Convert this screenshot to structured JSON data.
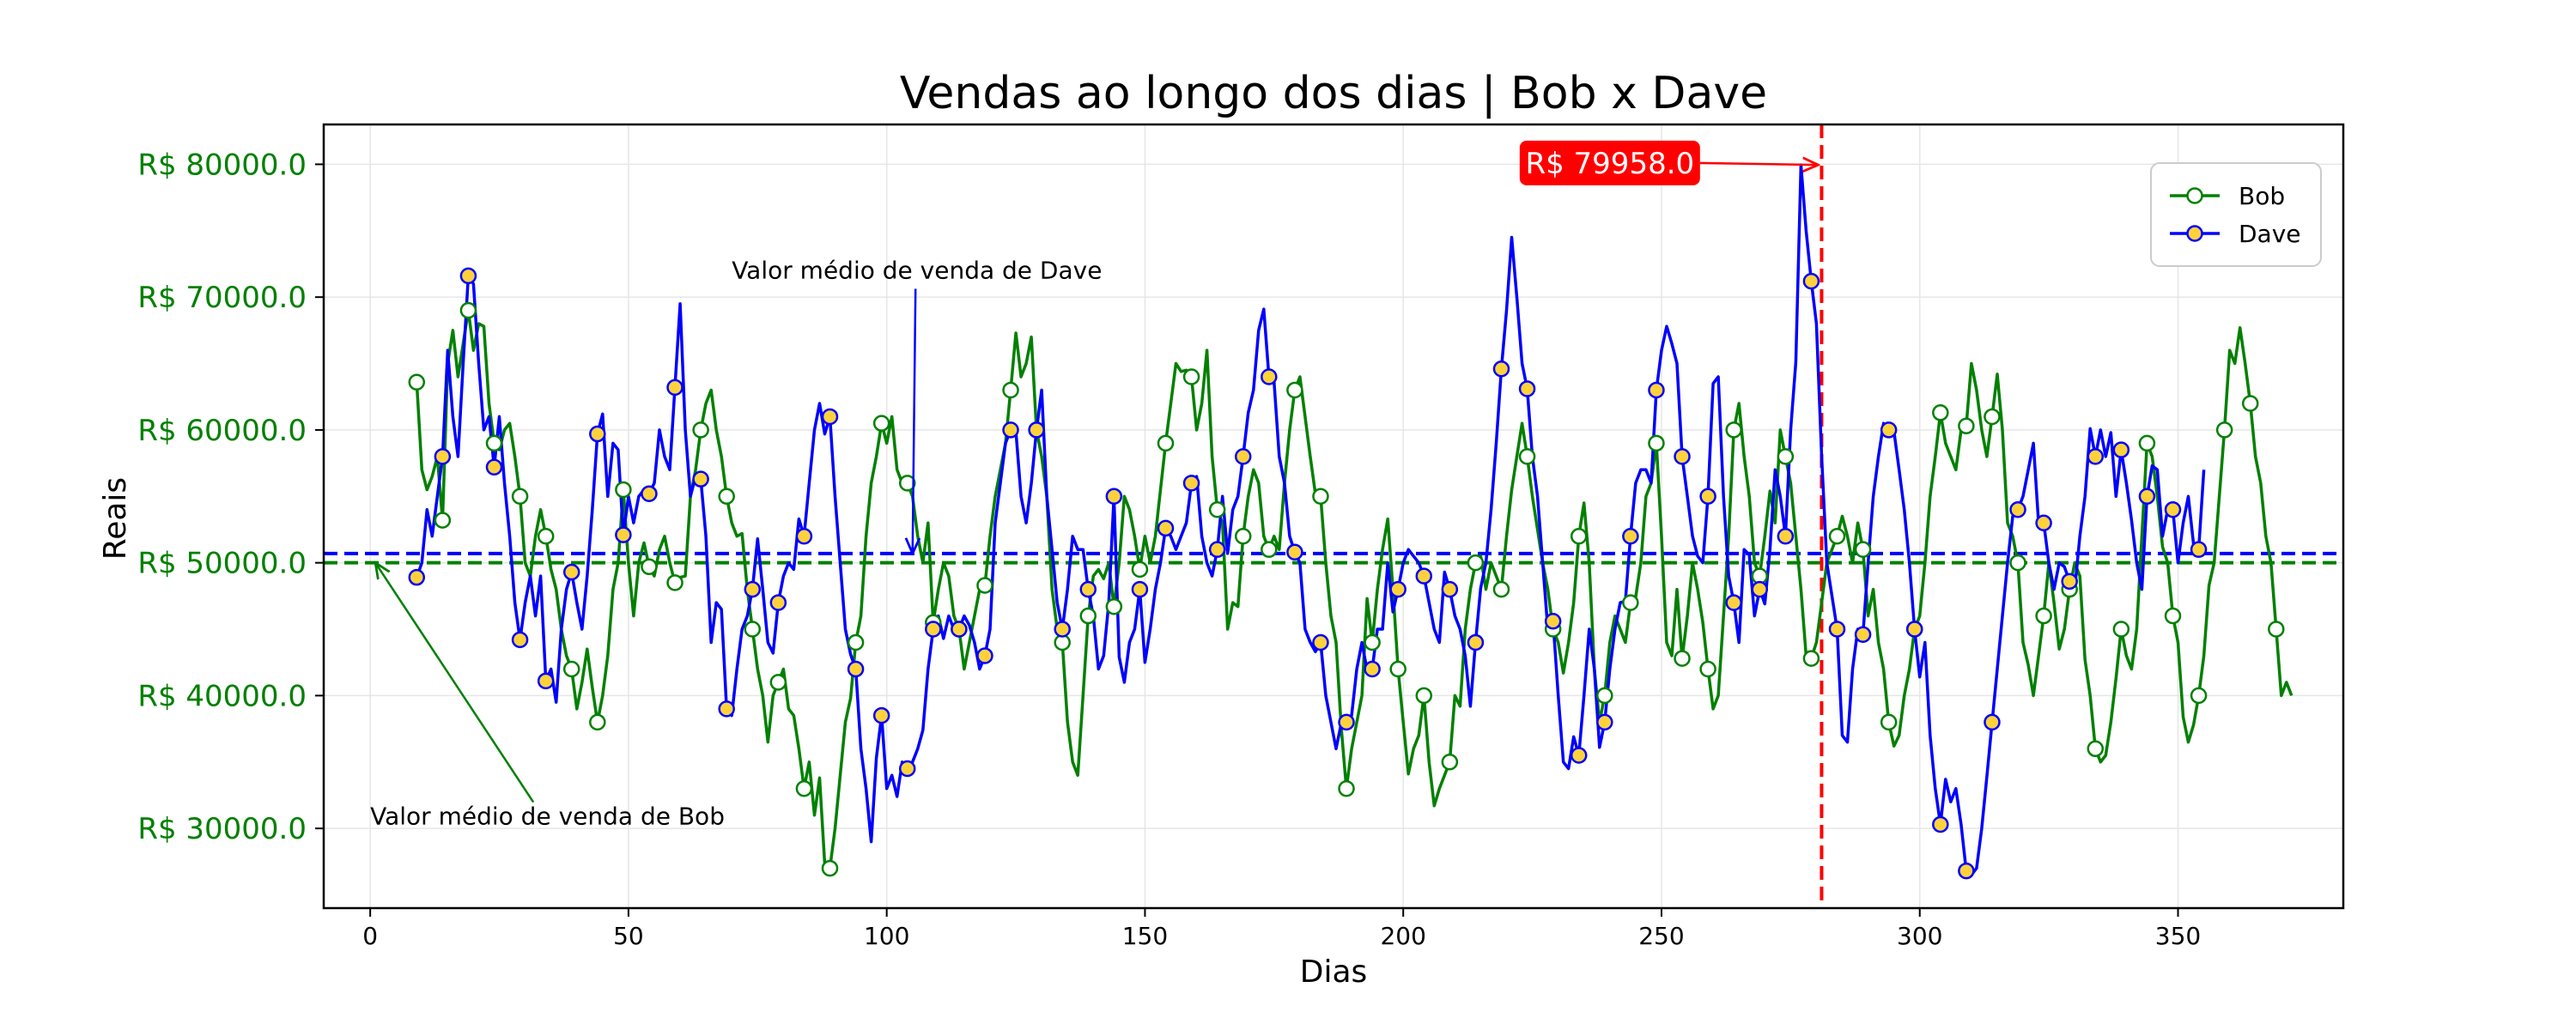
{
  "chart_data": {
    "type": "line",
    "title": "Vendas ao longo dos dias | Bob x Dave",
    "xlabel": "Dias",
    "ylabel": "Reais",
    "xlim": [
      -9,
      382
    ],
    "ylim": [
      24000,
      83000
    ],
    "x_ticks": [
      0,
      50,
      100,
      150,
      200,
      250,
      300,
      350
    ],
    "y_ticks": [
      30000,
      40000,
      50000,
      60000,
      70000,
      80000
    ],
    "y_tick_labels": [
      "R$ 30000.0",
      "R$ 40000.0",
      "R$ 50000.0",
      "R$ 60000.0",
      "R$ 70000.0",
      "R$ 80000.0"
    ],
    "grid": true,
    "legend_position": "top-right",
    "series": [
      {
        "name": "Bob",
        "color": "#008000",
        "marker": "open-circle",
        "marker_every": 5,
        "x_start": 9,
        "values": [
          63600,
          57000,
          55500,
          56500,
          58000,
          53200,
          65000,
          67500,
          64000,
          66500,
          69000,
          66000,
          68000,
          67800,
          62000,
          59000,
          58500,
          60000,
          60500,
          58000,
          55000,
          50000,
          49000,
          52000,
          54000,
          52000,
          49500,
          48000,
          45000,
          43000,
          42000,
          39000,
          41000,
          43500,
          40600,
          38000,
          40000,
          43000,
          48000,
          50000,
          55500,
          50000,
          46000,
          50000,
          51500,
          49700,
          49000,
          51000,
          52000,
          50000,
          48500,
          48900,
          49000,
          55000,
          57000,
          60000,
          62000,
          63000,
          60000,
          58000,
          55000,
          53000,
          52000,
          52200,
          48000,
          45000,
          42000,
          40000,
          36500,
          40000,
          41000,
          42000,
          39000,
          38500,
          36000,
          33000,
          35000,
          31000,
          33800,
          27300,
          27000,
          30000,
          34000,
          38000,
          39800,
          44000,
          46000,
          52000,
          56000,
          58000,
          60500,
          59000,
          61000,
          57000,
          56000,
          56000,
          55000,
          52000,
          50000,
          53000,
          45500,
          48000,
          50000,
          49000,
          46000,
          45000,
          42000,
          44000,
          46000,
          48000,
          48300,
          52000,
          55000,
          57000,
          59000,
          63000,
          67300,
          64000,
          65000,
          67000,
          60000,
          58000,
          55000,
          48000,
          45000,
          44000,
          38000,
          35000,
          34000,
          40000,
          46000,
          49000,
          49500,
          48800,
          50000,
          46700,
          50000,
          55000,
          54000,
          52000,
          49500,
          52000,
          50000,
          52000,
          55500,
          59000,
          62000,
          65000,
          64400,
          64500,
          64000,
          60000,
          62000,
          66000,
          58000,
          54000,
          53000,
          45000,
          47000,
          46700,
          52000,
          55000,
          57000,
          56000,
          52000,
          51000,
          52000,
          51000,
          56000,
          60000,
          63000,
          64000,
          61000,
          58000,
          55200,
          55000,
          50000,
          46000,
          44000,
          37600,
          33000,
          36000,
          38000,
          40000,
          47300,
          44000,
          48000,
          51000,
          53300,
          48000,
          42000,
          38000,
          34100,
          36000,
          37000,
          40000,
          35000,
          31700,
          33000,
          34000,
          35000,
          40000,
          39200,
          45000,
          48000,
          50000,
          50500,
          48000,
          50000,
          49000,
          48000,
          52000,
          55500,
          58000,
          60500,
          58000,
          55000,
          52500,
          50000,
          48000,
          45000,
          44000,
          41700,
          44000,
          47000,
          52000,
          54500,
          50000,
          42000,
          38000,
          40000,
          44000,
          46000,
          45000,
          44000,
          47000,
          47400,
          50000,
          55000,
          56000,
          59000,
          52000,
          44000,
          43000,
          48000,
          42800,
          46000,
          50000,
          48000,
          45500,
          42000,
          39000,
          40000,
          46000,
          52000,
          60000,
          62000,
          58000,
          55000,
          50000,
          49000,
          52000,
          55400,
          53000,
          60000,
          58000,
          56000,
          52000,
          48000,
          43000,
          42800,
          44000,
          47000,
          50000,
          51000,
          52000,
          53500,
          52000,
          50000,
          53000,
          51000,
          46000,
          48000,
          44000,
          42000,
          38000,
          36200,
          37000,
          40000,
          42000,
          45000,
          46000,
          50000,
          55000,
          58000,
          61300,
          59000,
          58000,
          57000,
          60000,
          60300,
          65000,
          63000,
          60000,
          58000,
          61000,
          64200,
          60000,
          53000,
          52000,
          50000,
          44000,
          42300,
          40000,
          43000,
          46000,
          50000,
          47000,
          43500,
          45000,
          48000,
          50000,
          49000,
          42700,
          40000,
          36000,
          35000,
          35500,
          38000,
          41300,
          45000,
          43000,
          42000,
          45000,
          52000,
          59000,
          58000,
          55000,
          51200,
          50000,
          46000,
          44000,
          38400,
          36500,
          37800,
          40000,
          43000,
          48300,
          50000,
          55000,
          60000,
          66000,
          65000,
          67700,
          65000,
          62000,
          58000,
          56000,
          52000,
          50000,
          45000,
          40000,
          41000,
          40000
        ]
      },
      {
        "name": "Dave",
        "color": "#0000ff",
        "marker": "filled-circle",
        "marker_color": "#ffd23c",
        "marker_every": 5,
        "x_start": 9,
        "values": [
          48900,
          50000,
          54000,
          52000,
          55000,
          58000,
          66000,
          61000,
          58000,
          65000,
          71600,
          71000,
          65000,
          60000,
          61000,
          57200,
          61000,
          56000,
          52000,
          47000,
          44200,
          47000,
          49000,
          46000,
          49000,
          41100,
          42000,
          39500,
          45000,
          48000,
          49300,
          47000,
          45000,
          49000,
          54000,
          59700,
          61200,
          55000,
          59000,
          58500,
          52100,
          55000,
          53000,
          55000,
          55500,
          55200,
          56000,
          60000,
          58000,
          57000,
          63200,
          69500,
          60000,
          55000,
          56500,
          56300,
          52000,
          44000,
          47000,
          46500,
          39000,
          38500,
          42000,
          45000,
          46000,
          48000,
          51800,
          48000,
          44000,
          43200,
          47000,
          49000,
          50000,
          49500,
          53300,
          52000,
          56000,
          60000,
          62000,
          59700,
          61000,
          55000,
          50000,
          45000,
          43100,
          42000,
          36000,
          33000,
          29000,
          35300,
          38500,
          33000,
          34000,
          32400,
          35000,
          34500,
          35000,
          36000,
          37400,
          42000,
          45000,
          46000,
          44300,
          46000,
          45000,
          45000,
          46000,
          45300,
          44000,
          42000,
          43000,
          45000,
          53000,
          56000,
          59000,
          60000,
          59900,
          55000,
          53000,
          56000,
          60000,
          63000,
          55000,
          51000,
          47000,
          45000,
          48000,
          52000,
          51000,
          51000,
          48000,
          46000,
          42000,
          43000,
          47000,
          55000,
          42900,
          41000,
          44000,
          45000,
          48000,
          42500,
          45000,
          48000,
          50000,
          52600,
          52000,
          51000,
          52000,
          53000,
          56000,
          56500,
          52000,
          50000,
          49000,
          51000,
          55000,
          50700,
          54000,
          55000,
          58000,
          61300,
          63000,
          67500,
          69100,
          64000,
          63600,
          58000,
          56000,
          52000,
          50800,
          50000,
          45000,
          44000,
          43300,
          44000,
          40000,
          38000,
          36000,
          37900,
          38000,
          38500,
          42000,
          44000,
          41900,
          42000,
          45000,
          45000,
          50000,
          46300,
          48000,
          50000,
          51000,
          50500,
          50000,
          49000,
          47000,
          45000,
          44000,
          49300,
          48000,
          46000,
          45000,
          43000,
          39200,
          44000,
          48100,
          50000,
          54000,
          59000,
          64600,
          69000,
          74500,
          70000,
          65000,
          63100,
          58000,
          55000,
          50000,
          45000,
          45600,
          40000,
          35000,
          34500,
          36900,
          35500,
          40000,
          45000,
          42000,
          36100,
          38000,
          42000,
          45000,
          47000,
          47100,
          52000,
          56000,
          57000,
          57000,
          56000,
          63000,
          66000,
          67800,
          66500,
          65000,
          58000,
          55000,
          52000,
          50500,
          50000,
          55000,
          63500,
          64000,
          55000,
          49000,
          47000,
          44000,
          51000,
          50600,
          46000,
          48000,
          46900,
          51000,
          57000,
          55000,
          52000,
          60000,
          65100,
          79958,
          75000,
          71200,
          68000,
          58000,
          50000,
          47500,
          45000,
          37000,
          36500,
          42000,
          45000,
          44600,
          50000,
          55000,
          58000,
          60500,
          60000,
          59900,
          57000,
          54000,
          50000,
          45000,
          41400,
          44000,
          37000,
          33000,
          30300,
          33700,
          32000,
          33000,
          30300,
          26800,
          26500,
          27000,
          30000,
          33900,
          38000,
          42000,
          46000,
          50000,
          53500,
          54000,
          55000,
          57000,
          59000,
          53000,
          53000,
          50000,
          48000,
          50000,
          49700,
          48600,
          48000,
          52000,
          55000,
          60100,
          58000,
          60000,
          58000,
          59800,
          55000,
          58500,
          56000,
          53200,
          50000,
          48000,
          55000,
          57300,
          57000,
          52000,
          54000,
          54000,
          50000,
          53000,
          55000,
          51400,
          51000,
          57000
        ]
      }
    ],
    "reference_lines": [
      {
        "value": 50000,
        "color": "#008000",
        "style": "dashed",
        "label": "Valor médio de venda de Bob"
      },
      {
        "value": 50700,
        "color": "#0000ff",
        "style": "dashed",
        "label": "Valor médio de venda de Dave"
      }
    ],
    "vertical_line": {
      "x": 281,
      "color": "#ff0000",
      "style": "dashed"
    },
    "annotations": [
      {
        "text": "Valor médio de venda de Bob",
        "color": "#008000",
        "target": [
          1,
          50000
        ],
        "text_at": [
          0,
          30300
        ]
      },
      {
        "text": "Valor médio de venda de Dave",
        "color": "#0000ff",
        "target": [
          105,
          50700
        ],
        "text_at": [
          70,
          71400
        ]
      },
      {
        "text": "R$ 79958.0",
        "color": "#ff0000",
        "target": [
          281,
          79958
        ],
        "text_at": [
          240,
          80100
        ],
        "boxed": true
      }
    ]
  }
}
